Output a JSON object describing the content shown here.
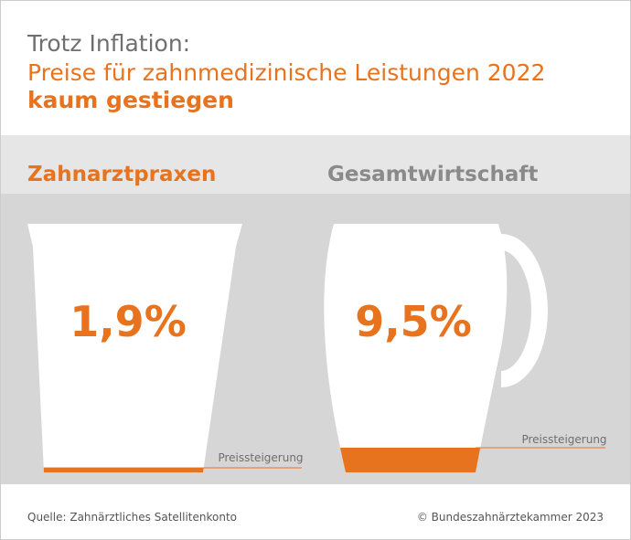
{
  "header": {
    "line1": "Trotz Inflation:",
    "line2": "Preise für zahnmedizinische Leistungen 2022",
    "line3": "kaum gestiegen"
  },
  "panels": [
    {
      "title": "Zahnarztpraxen",
      "value": 1.9,
      "value_label": "1,9%",
      "note": "Preissteigerung"
    },
    {
      "title": "Gesamtwirtschaft",
      "value": 9.5,
      "value_label": "9,5%",
      "note": "Preissteigerung"
    }
  ],
  "footer": {
    "source": "Quelle: Zahnärztliches Satellitenkonto",
    "copyright": "© Bundeszahnärztekammer 2023"
  }
}
